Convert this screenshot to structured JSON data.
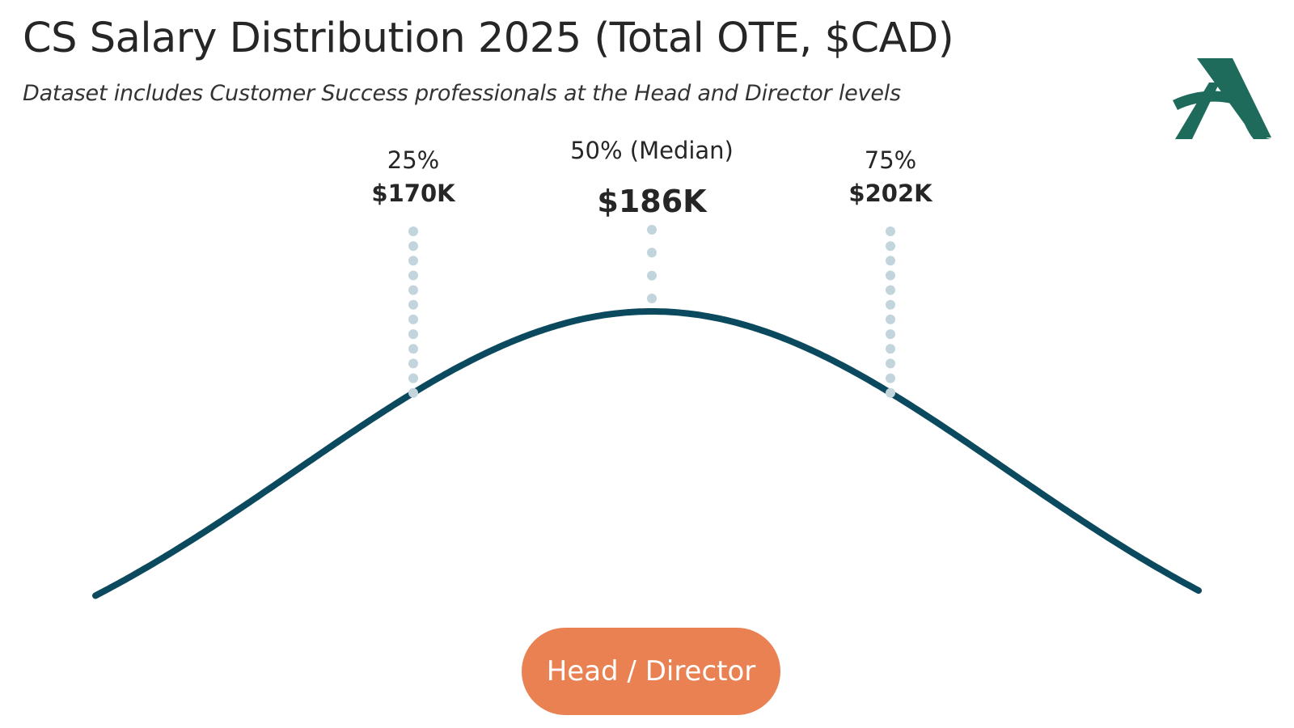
{
  "header": {
    "title": "CS Salary Distribution 2025 (Total OTE, $CAD)",
    "subtitle": "Dataset includes Customer Success professionals at the Head and Director levels"
  },
  "logo": {
    "icon": "letter-a-logo",
    "color": "#1e6b5c"
  },
  "chart_data": {
    "type": "line",
    "title": "CS Salary Distribution 2025 (Total OTE, $CAD)",
    "subtitle": "Dataset includes Customer Success professionals at the Head and Director levels",
    "series": [
      {
        "name": "Head / Director",
        "distribution": "normal",
        "median": 186,
        "p25": 170,
        "p75": 202,
        "unit": "$K CAD",
        "color": "#0b4a5e"
      }
    ],
    "percentiles": [
      {
        "label": "25%",
        "value_label": "$170K",
        "value": 170
      },
      {
        "label": "50% (Median)",
        "value_label": "$186K",
        "value": 186
      },
      {
        "label": "75%",
        "value_label": "$202K",
        "value": 202
      }
    ],
    "marker_color": "#c2d4dc",
    "grid": false,
    "legend": "bottom-center",
    "legend_color": "#e98152"
  }
}
